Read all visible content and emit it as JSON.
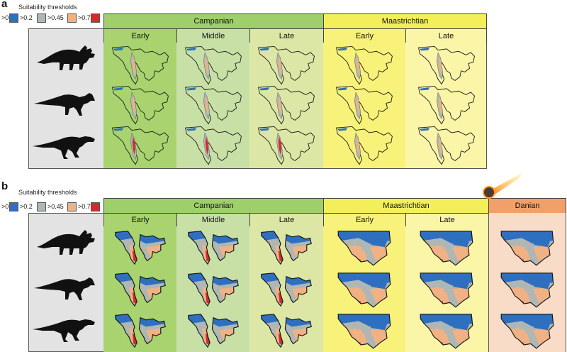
{
  "panel_a": {
    "label": "a",
    "legend": {
      "title": "Suitability thresholds",
      "items": [
        {
          "label": ">0",
          "color": "#2f6fc0"
        },
        {
          "label": ">0.2",
          "color": "#aeb7b3"
        },
        {
          "label": ">0.45",
          "color": "#f0b184"
        },
        {
          "label": ">0.7",
          "color": "#d42a2a"
        }
      ]
    },
    "stages": [
      {
        "name": "Campanian",
        "color": "#9fcf6a"
      },
      {
        "name": "Maastrichtian",
        "color": "#f3ef5a"
      }
    ],
    "substages": [
      "Early",
      "Middle",
      "Late",
      "Early",
      "Late"
    ],
    "column_colors": [
      "#a8d36e",
      "#c8e0a6",
      "#dce7a6",
      "#f8f27a",
      "#fbf5a8"
    ],
    "species_icons": [
      "ceratopsid-silhouette-icon",
      "hadrosaurid-silhouette-icon",
      "tyrannosaurid-silhouette-icon"
    ]
  },
  "panel_b": {
    "label": "b",
    "legend": {
      "title": "Suitability thresholds",
      "items": [
        {
          "label": ">0",
          "color": "#2f6fc0"
        },
        {
          "label": ">0.2",
          "color": "#aeb7b3"
        },
        {
          "label": ">0.45",
          "color": "#f0b184"
        },
        {
          "label": ">0.7",
          "color": "#d42a2a"
        }
      ]
    },
    "stages": [
      {
        "name": "Campanian",
        "color": "#9fcf6a"
      },
      {
        "name": "Maastrichtian",
        "color": "#f3ef5a"
      },
      {
        "name": "Danian",
        "color": "#f2a06a"
      }
    ],
    "substages": [
      "Early",
      "Middle",
      "Late",
      "Early",
      "Late"
    ],
    "column_colors": [
      "#a8d36e",
      "#c8e0a6",
      "#dce7a6",
      "#f8f27a",
      "#fbf5a8",
      "#f8dcc8"
    ],
    "species_icons": [
      "ceratopsid-silhouette-icon",
      "hadrosaurid-silhouette-icon",
      "tyrannosaurid-silhouette-icon"
    ],
    "extra_icon": "asteroid-impact-icon"
  }
}
